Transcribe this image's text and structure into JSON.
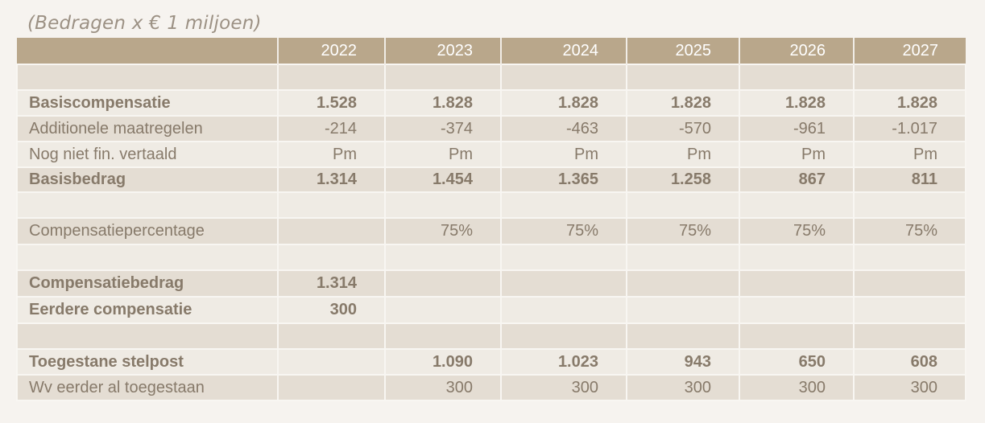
{
  "caption": "(Bedragen x € 1 miljoen)",
  "table": {
    "headers": [
      "",
      "2022",
      "2023",
      "2024",
      "2025",
      "2026",
      "2027"
    ],
    "rows": [
      {
        "label": "",
        "values": [
          "",
          "",
          "",
          "",
          "",
          ""
        ]
      },
      {
        "label": "Basiscompensatie",
        "values": [
          "1.528",
          "1.828",
          "1.828",
          "1.828",
          "1.828",
          "1.828"
        ]
      },
      {
        "label": "Additionele maatregelen",
        "values": [
          "-214",
          "-374",
          "-463",
          "-570",
          "-961",
          "-1.017"
        ]
      },
      {
        "label": "Nog niet fin. vertaald",
        "values": [
          "Pm",
          "Pm",
          "Pm",
          "Pm",
          "Pm",
          "Pm"
        ]
      },
      {
        "label": "Basisbedrag",
        "values": [
          "1.314",
          "1.454",
          "1.365",
          "1.258",
          "867",
          "811"
        ]
      },
      {
        "label": "",
        "values": [
          "",
          "",
          "",
          "",
          "",
          ""
        ]
      },
      {
        "label": "Compensatiepercentage",
        "values": [
          "",
          "75%",
          "75%",
          "75%",
          "75%",
          "75%"
        ]
      },
      {
        "label": "",
        "values": [
          "",
          "",
          "",
          "",
          "",
          ""
        ]
      },
      {
        "label": "Compensatiebedrag",
        "values": [
          "1.314",
          "",
          "",
          "",
          "",
          ""
        ]
      },
      {
        "label": "Eerdere compensatie",
        "values": [
          "300",
          "",
          "",
          "",
          "",
          ""
        ]
      },
      {
        "label": "",
        "values": [
          "",
          "",
          "",
          "",
          "",
          ""
        ]
      },
      {
        "label": "Toegestane stelpost",
        "values": [
          "",
          "1.090",
          "1.023",
          "943",
          "650",
          "608"
        ]
      },
      {
        "label": "Wv eerder al toegestaan",
        "values": [
          "",
          "300",
          "300",
          "300",
          "300",
          "300"
        ]
      }
    ]
  },
  "colors": {
    "header_bg": "#b9a78b",
    "row_dark": "#e4ddd3",
    "row_light": "#efebe4",
    "text": "#877a6a"
  }
}
